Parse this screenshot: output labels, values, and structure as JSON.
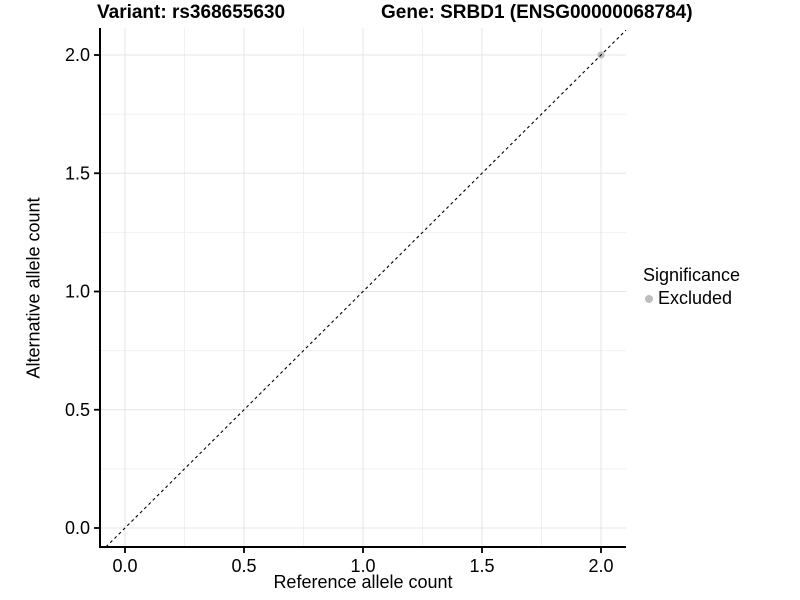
{
  "page": {
    "background": "#ffffff"
  },
  "header": {
    "variant_title": "Variant: rs368655630",
    "gene_title": "Gene: SRBD1 (ENSG00000068784)"
  },
  "chart_data": {
    "type": "scatter",
    "xlabel": "Reference allele count",
    "ylabel": "Alternative allele count",
    "xlim": [
      -0.105,
      2.105
    ],
    "ylim": [
      -0.08,
      2.114
    ],
    "x_ticks": [
      0,
      0.5,
      1,
      1.5,
      2
    ],
    "x_tick_labels": [
      "0.0",
      "0.5",
      "1.0",
      "1.5",
      "2.0"
    ],
    "y_ticks": [
      0,
      0.5,
      1,
      1.5,
      2
    ],
    "y_tick_labels": [
      "0.0",
      "0.5",
      "1.0",
      "1.5",
      "2.0"
    ],
    "x_minor_ticks": [
      0.25,
      0.75,
      1.25,
      1.75
    ],
    "y_minor_ticks": [
      0.25,
      0.75,
      1.25,
      1.75
    ],
    "grid": "major-and-minor",
    "identity_line": {
      "slope": 1,
      "intercept": 0,
      "style": "dashed",
      "color": "#000000"
    },
    "series": [
      {
        "name": "Excluded",
        "color": "#bebebe",
        "points": [
          {
            "x": 2.0,
            "y": 2.0
          }
        ]
      }
    ],
    "legend": {
      "title": "Significance",
      "position": "right",
      "entries": [
        {
          "label": "Excluded",
          "color": "#bebebe"
        }
      ]
    }
  },
  "colors": {
    "axis_line": "#000000",
    "grid_major": "#e4e4e4",
    "grid_minor": "#f1f1f1",
    "text": "#000000",
    "point": "#bebebe"
  }
}
